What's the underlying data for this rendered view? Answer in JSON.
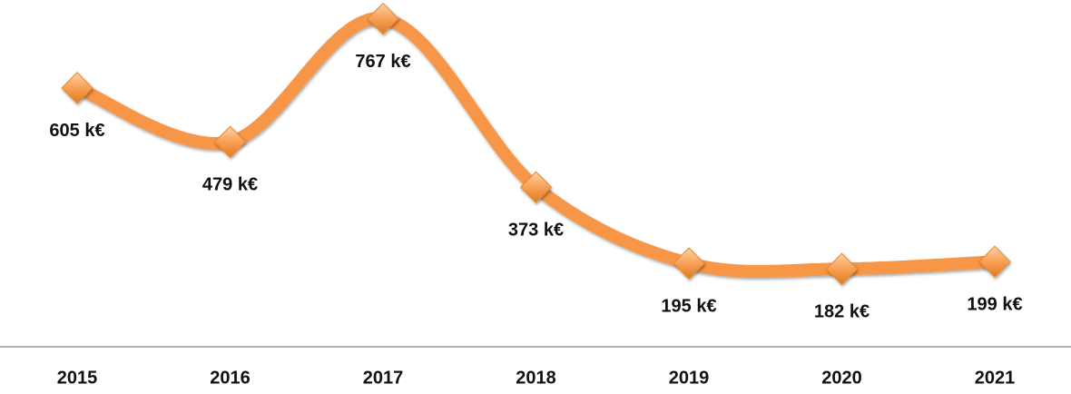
{
  "chart_data": {
    "type": "line",
    "categories": [
      "2015",
      "2016",
      "2017",
      "2018",
      "2019",
      "2020",
      "2021"
    ],
    "values": [
      605,
      479,
      767,
      373,
      195,
      182,
      199
    ],
    "value_labels": [
      "605 k€",
      "479 k€",
      "767 k€",
      "373 k€",
      "195 k€",
      "182 k€",
      "199 k€"
    ],
    "color": "#f79646",
    "ylim": [
      0,
      800
    ]
  }
}
